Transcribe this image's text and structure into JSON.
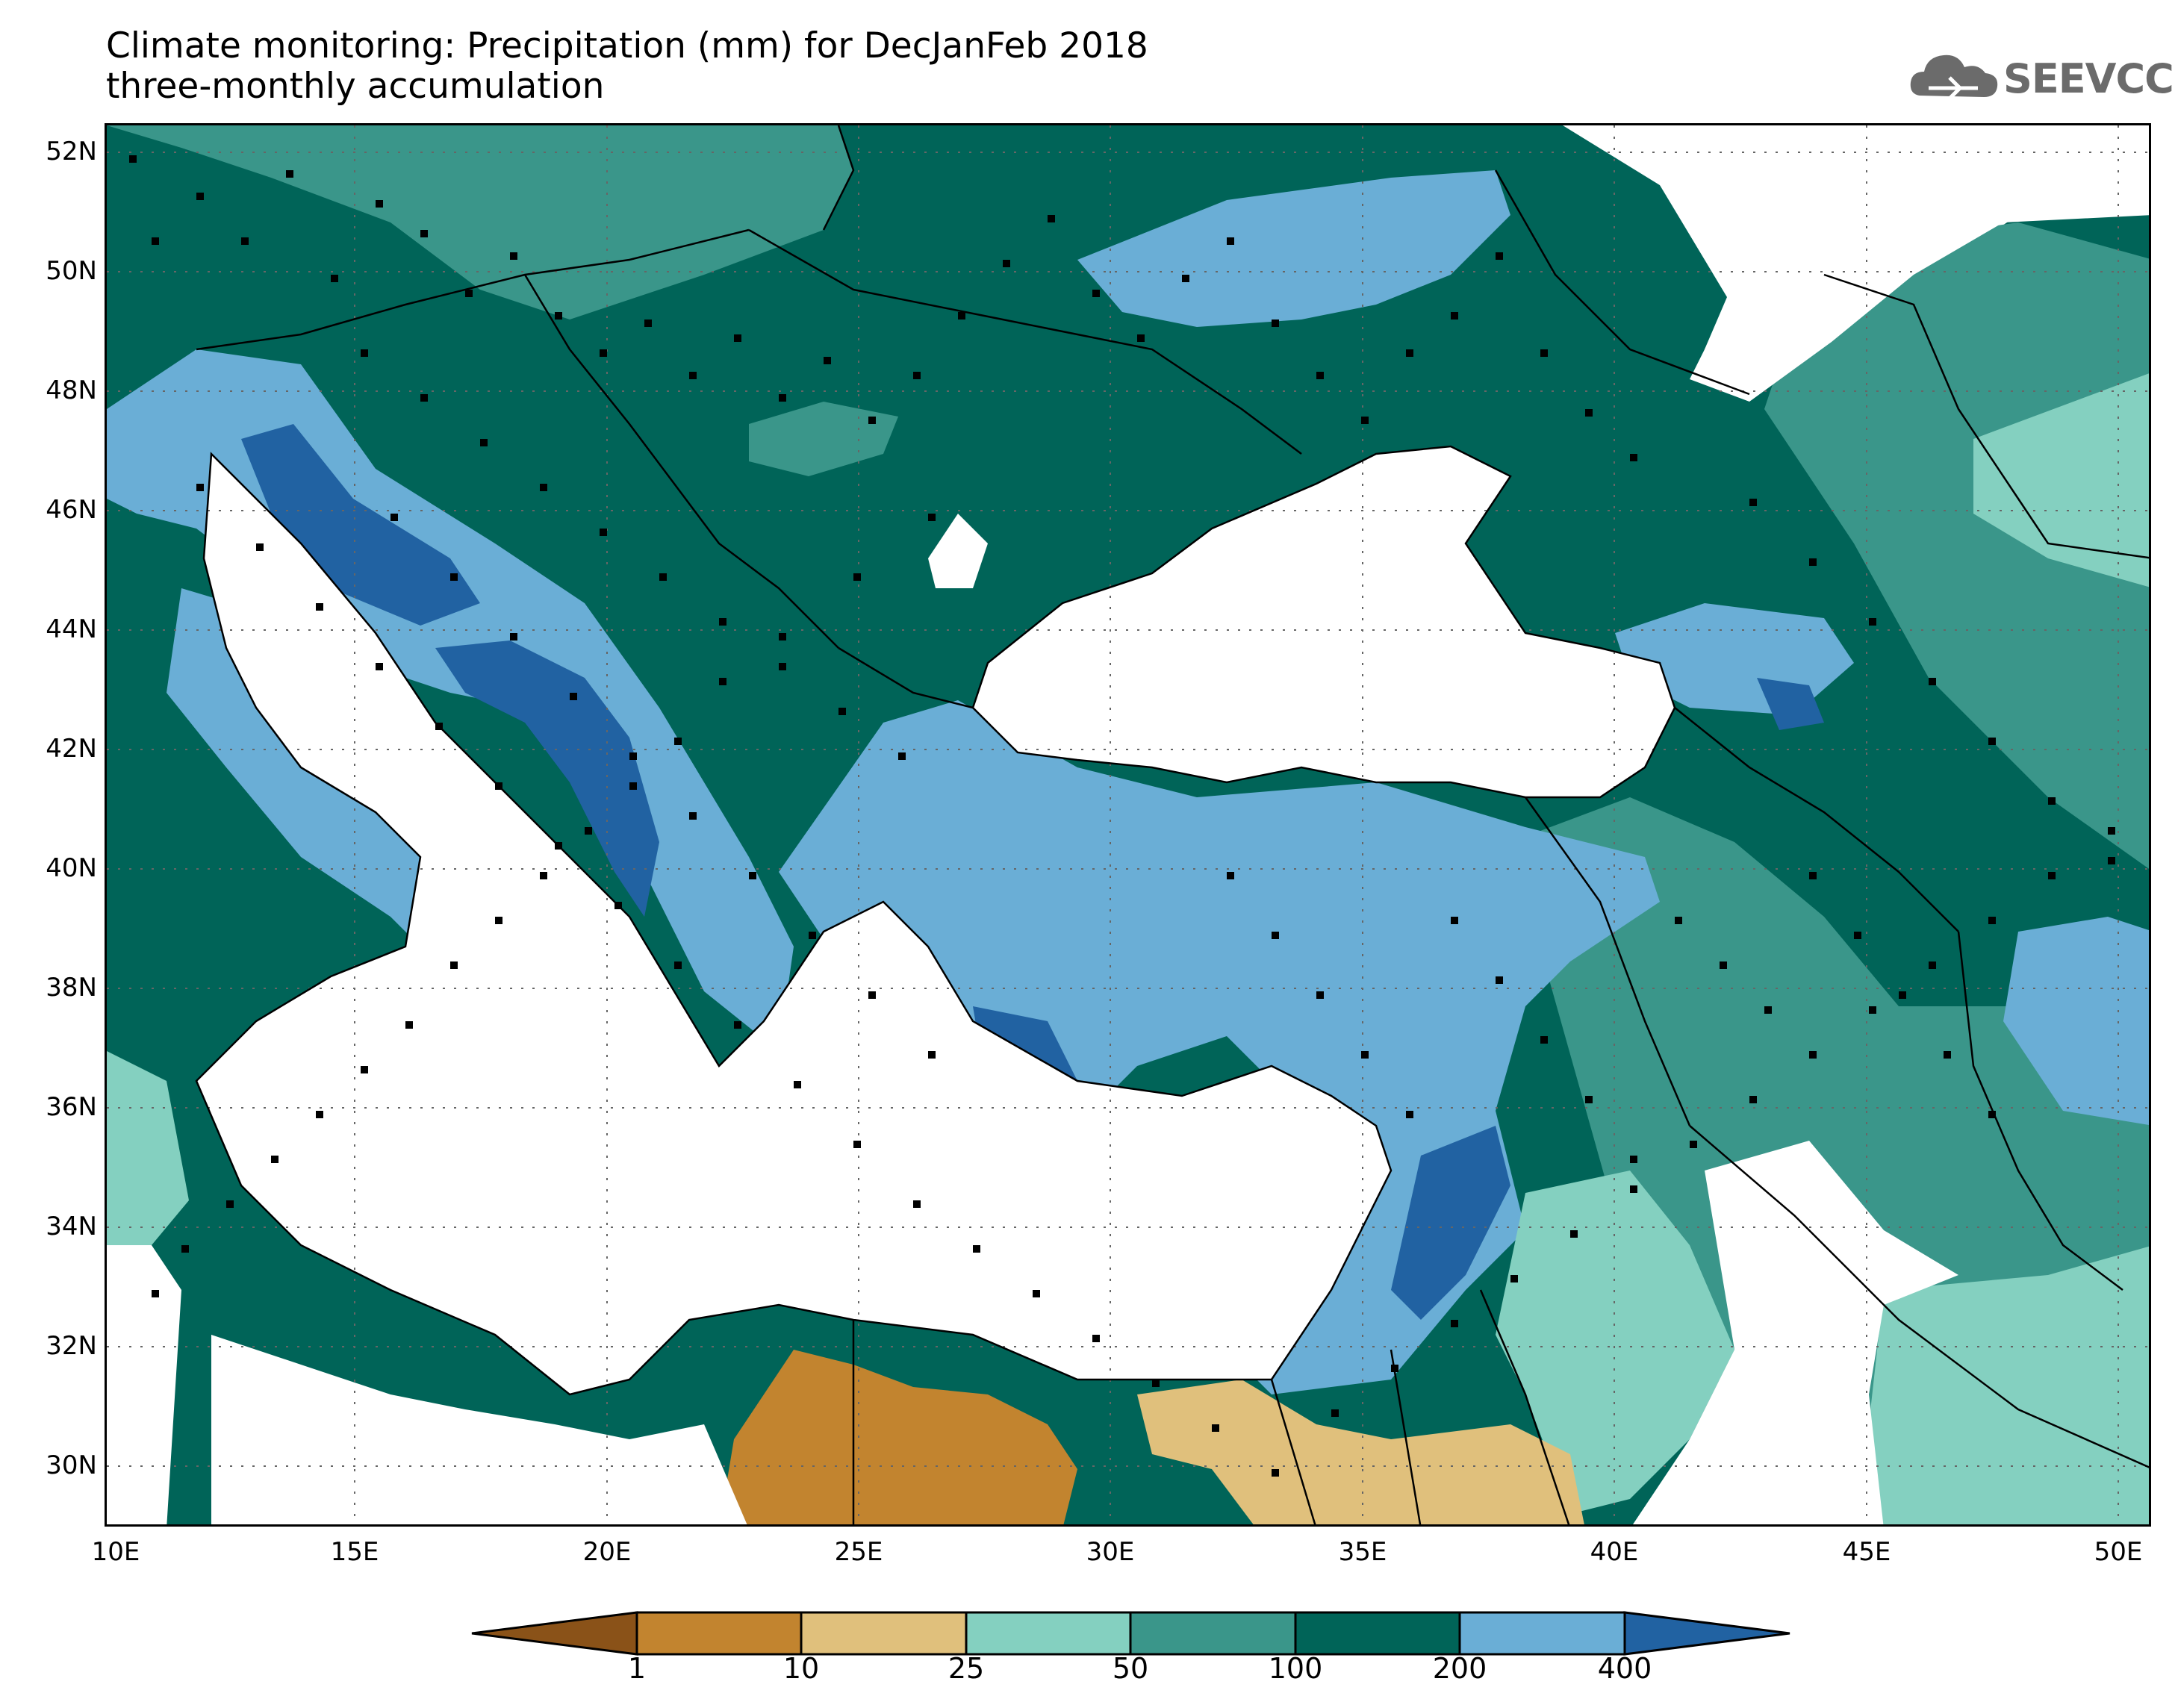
{
  "title": {
    "line1": "Climate monitoring: Precipitation (mm) for DecJanFeb 2018",
    "line2": "three-monthly accumulation"
  },
  "logo": {
    "text": "SEEVCCC",
    "icon": "cloud-icon"
  },
  "map": {
    "projection": "lat-lon",
    "lon_range": [
      10,
      51
    ],
    "lat_range": [
      29,
      52.5
    ],
    "grid": "dotted",
    "lat_labels": [
      "52N",
      "50N",
      "48N",
      "46N",
      "44N",
      "42N",
      "40N",
      "38N",
      "36N",
      "34N",
      "32N",
      "30N"
    ],
    "lon_labels": [
      "10E",
      "15E",
      "20E",
      "25E",
      "30E",
      "35E",
      "40E",
      "45E",
      "50E"
    ],
    "station_marker": "black-square"
  },
  "legend": {
    "thresholds": [
      "1",
      "10",
      "25",
      "50",
      "100",
      "200",
      "400"
    ],
    "colors": [
      "#8a5218",
      "#c2842f",
      "#e0c07c",
      "#84d0c0",
      "#3a968a",
      "#006458",
      "#6aaed6",
      "#2162a2"
    ]
  }
}
